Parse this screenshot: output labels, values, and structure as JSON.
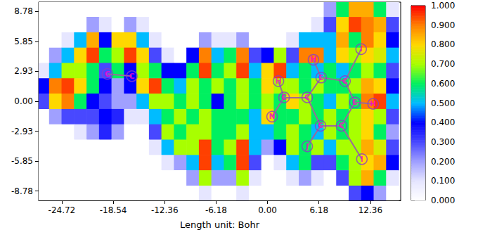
{
  "chart_data": {
    "type": "heatmap",
    "x_label": "Length unit: Bohr",
    "x": [
      -27,
      -25.5,
      -24,
      -22.5,
      -21,
      -19.5,
      -18,
      -16.5,
      -15,
      -13.5,
      -12,
      -10.5,
      -9,
      -7.5,
      -6,
      -4.5,
      -3,
      -1.5,
      0,
      1.5,
      3,
      4.5,
      6,
      7.5,
      9,
      10.5,
      12,
      13.5,
      15
    ],
    "y": [
      9,
      7.5,
      6,
      4.5,
      3,
      1.5,
      0,
      -1.5,
      -3,
      -4.5,
      -6,
      -7.5,
      -9
    ],
    "values": [
      [
        0,
        0,
        0,
        0,
        0,
        0,
        0,
        0,
        0,
        0,
        0,
        0,
        0,
        0,
        0,
        0,
        0,
        0,
        0,
        0,
        0,
        0,
        0,
        0.2,
        0.6,
        0.85,
        0.85,
        0.6,
        0.1
      ],
      [
        0,
        0,
        0,
        0,
        0.2,
        0.1,
        0,
        0.2,
        0.1,
        0,
        0,
        0,
        0,
        0,
        0,
        0,
        0,
        0,
        0,
        0,
        0,
        0,
        0.1,
        0.3,
        0.8,
        0.95,
        0.9,
        0.85,
        0.3
      ],
      [
        0,
        0,
        0.1,
        0.5,
        0.85,
        0.4,
        0.8,
        0.8,
        0.5,
        0.1,
        0,
        0,
        0,
        0.2,
        0.1,
        0.1,
        0.2,
        0,
        0,
        0,
        0.1,
        0.5,
        0.5,
        0.5,
        0.85,
        0.6,
        0.9,
        0.8,
        0.4
      ],
      [
        0,
        0.2,
        0.5,
        0.8,
        0.95,
        0.6,
        0.7,
        0.95,
        0.8,
        0.3,
        0.1,
        0,
        0.4,
        0.9,
        0.5,
        0.6,
        0.9,
        0.3,
        0.4,
        0.7,
        0.3,
        0.9,
        0.9,
        0.5,
        0.8,
        0.7,
        0.8,
        0.75,
        0.5
      ],
      [
        0.1,
        0.5,
        0.7,
        0.7,
        0.6,
        0.3,
        0.6,
        0.4,
        0.7,
        0.6,
        0.4,
        0.4,
        0.6,
        0.95,
        0.6,
        0.7,
        0.95,
        0.5,
        0.8,
        0.95,
        0.5,
        0.6,
        0.5,
        0.6,
        0.5,
        0.6,
        0.7,
        0.6,
        0.3
      ],
      [
        0.4,
        0.9,
        0.95,
        0.8,
        0.6,
        0.4,
        0.2,
        0.4,
        0.8,
        0.95,
        0.6,
        0.5,
        0.7,
        0.6,
        0.7,
        0.6,
        0.7,
        0.6,
        0.8,
        0.7,
        0.7,
        0.6,
        0.7,
        0.6,
        0.6,
        0.7,
        0.85,
        0.8,
        0.4
      ],
      [
        0.3,
        0.8,
        0.9,
        0.6,
        0.4,
        0.3,
        0.2,
        0.2,
        0.5,
        0.7,
        0.7,
        0.6,
        0.7,
        0.6,
        0.4,
        0.6,
        0.7,
        0.6,
        0.7,
        0.6,
        0.8,
        0.7,
        0.6,
        0.5,
        0.7,
        0.6,
        0.9,
        0.95,
        0.5
      ],
      [
        0,
        0.2,
        0.3,
        0.3,
        0.3,
        0.4,
        0.35,
        0.1,
        0.1,
        0.5,
        0.6,
        0.7,
        0.6,
        0.7,
        0.6,
        0.6,
        0.6,
        0.5,
        0.8,
        0.6,
        0.6,
        0.7,
        0.6,
        0.7,
        0.6,
        0.7,
        0.8,
        0.7,
        0.3
      ],
      [
        0,
        0,
        0,
        0.1,
        0.2,
        0.35,
        0.2,
        0,
        0,
        0.3,
        0.7,
        0.6,
        0.7,
        0.7,
        0.6,
        0.6,
        0.7,
        0.5,
        0.5,
        0.6,
        0.7,
        0.6,
        0.5,
        0.7,
        0.6,
        0.7,
        0.8,
        0.6,
        0.2
      ],
      [
        0,
        0,
        0,
        0,
        0,
        0,
        0,
        0,
        0,
        0.1,
        0.5,
        0.7,
        0.7,
        0.95,
        0.6,
        0.7,
        0.95,
        0.5,
        0.2,
        0.4,
        0.7,
        0.6,
        0.7,
        0.5,
        0.7,
        0.7,
        0.85,
        0.75,
        0.3
      ],
      [
        0,
        0,
        0,
        0,
        0,
        0,
        0,
        0,
        0,
        0,
        0.1,
        0.2,
        0.5,
        0.95,
        0.5,
        0.6,
        0.95,
        0.3,
        0,
        0.1,
        0.5,
        0.6,
        0.3,
        0.3,
        0.6,
        0.7,
        0.8,
        0.85,
        0.4
      ],
      [
        0,
        0,
        0,
        0,
        0,
        0,
        0,
        0,
        0,
        0,
        0,
        0,
        0.2,
        0.7,
        0.2,
        0.2,
        0.7,
        0.1,
        0,
        0,
        0.1,
        0.2,
        0.1,
        0,
        0.3,
        0.7,
        0.85,
        0.6,
        0.1
      ],
      [
        0,
        0,
        0,
        0,
        0,
        0,
        0,
        0,
        0,
        0,
        0,
        0,
        0,
        0.1,
        0,
        0,
        0.1,
        0,
        0,
        0,
        0,
        0,
        0,
        0,
        0,
        0.3,
        0.4,
        0.2,
        0
      ]
    ],
    "xlim": [
      -27.5,
      16.0
    ],
    "ylim": [
      -9.7,
      9.7
    ],
    "xticks": [
      -24.72,
      -18.54,
      -12.36,
      -6.18,
      {
        "value": 0,
        "label": "0.00"
      },
      6.18,
      12.36
    ],
    "yticks": [
      -8.78,
      -5.85,
      -2.93,
      {
        "value": 0,
        "label": "0.00"
      },
      2.93,
      5.85,
      8.78
    ],
    "colorbar_range": [
      0,
      1
    ],
    "colorbar_ticks": [
      {
        "value": 0,
        "label": "0.000"
      },
      {
        "value": 0.1,
        "label": "0.100"
      },
      {
        "value": 0.2,
        "label": "0.200"
      },
      {
        "value": 0.3,
        "label": "0.300"
      },
      {
        "value": 0.4,
        "label": "0.400"
      },
      {
        "value": 0.5,
        "label": "0.500"
      },
      {
        "value": 0.6,
        "label": "0.600"
      },
      {
        "value": 0.7,
        "label": "0.700"
      },
      {
        "value": 0.8,
        "label": "0.800"
      },
      {
        "value": 0.9,
        "label": "0.900"
      },
      {
        "value": 1,
        "label": "1.000"
      }
    ],
    "atoms": [
      {
        "label": "C",
        "x": -19.24,
        "y": 2.67
      },
      {
        "label": "C",
        "x": -16.3,
        "y": 2.46
      },
      {
        "label": "H",
        "x": 1.31,
        "y": 1.97
      },
      {
        "label": "C",
        "x": 1.99,
        "y": 0.38
      },
      {
        "label": "N",
        "x": 0.55,
        "y": -1.5
      },
      {
        "label": "C",
        "x": 4.77,
        "y": 0.38
      },
      {
        "label": "H",
        "x": 5.52,
        "y": 4.06
      },
      {
        "label": "C",
        "x": 6.45,
        "y": 2.32
      },
      {
        "label": "C",
        "x": 9.31,
        "y": 1.97
      },
      {
        "label": "I",
        "x": 11.25,
        "y": 5.1
      },
      {
        "label": "C",
        "x": 10.49,
        "y": -0.11
      },
      {
        "label": "H",
        "x": 12.69,
        "y": -0.25
      },
      {
        "label": "C",
        "x": 6.37,
        "y": -2.4
      },
      {
        "label": "C",
        "x": 8.89,
        "y": -2.4
      },
      {
        "label": "J",
        "x": 4.77,
        "y": -4.41
      },
      {
        "label": "I",
        "x": 11.34,
        "y": -5.66
      }
    ],
    "bonds": [
      [
        0,
        1
      ],
      [
        2,
        3
      ],
      [
        3,
        4
      ],
      [
        3,
        5
      ],
      [
        5,
        7
      ],
      [
        6,
        7
      ],
      [
        7,
        8
      ],
      [
        8,
        9
      ],
      [
        8,
        10
      ],
      [
        10,
        11
      ],
      [
        10,
        13
      ],
      [
        13,
        12
      ],
      [
        12,
        5
      ],
      [
        12,
        14
      ],
      [
        13,
        15
      ]
    ]
  }
}
